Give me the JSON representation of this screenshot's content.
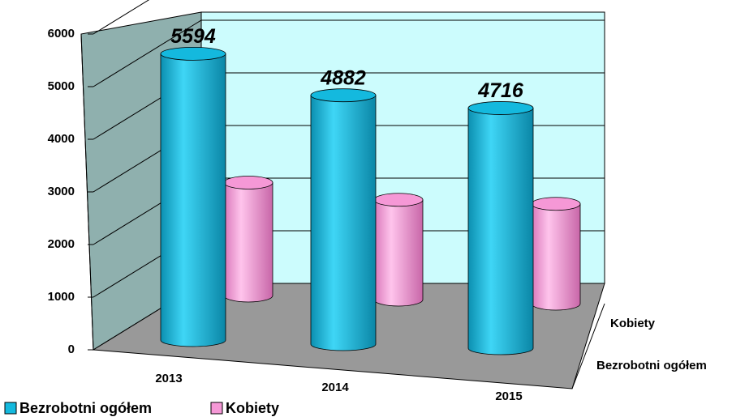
{
  "chart_data": {
    "type": "bar3d",
    "categories": [
      "2013",
      "2014",
      "2015"
    ],
    "series": [
      {
        "name": "Bezrobotni ogółem",
        "color": "#14b9de",
        "values": [
          5594,
          4882,
          4716
        ]
      },
      {
        "name": "Kobiety",
        "color": "#f598d6",
        "values": [
          2300,
          2050,
          2050
        ]
      }
    ],
    "ylim": [
      0,
      6000
    ],
    "yticks": [
      0,
      1000,
      2000,
      3000,
      4000,
      5000,
      6000
    ],
    "grid": true
  }
}
